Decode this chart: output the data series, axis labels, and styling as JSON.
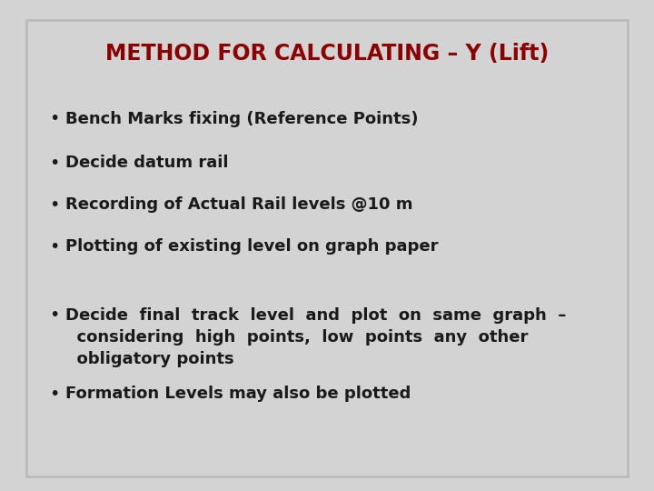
{
  "title": "METHOD FOR CALCULATING – Y (Lift)",
  "title_color": "#8B0000",
  "title_fontsize": 17,
  "background_color": "#D3D3D3",
  "border_color": "#BBBBBB",
  "text_color": "#1a1a1a",
  "bullet_items": [
    "Bench Marks fixing (Reference Points)",
    "Decide datum rail",
    "Recording of Actual Rail levels @10 m",
    "Plotting of existing level on graph paper",
    "Decide  final  track  level  and  plot  on  same  graph  –\n  considering  high  points,  low  points  any  other\n  obligatory points",
    "Formation Levels may also be plotted"
  ],
  "bullet_fontsize": 13,
  "fig_width": 7.2,
  "fig_height": 5.4,
  "dpi": 100
}
